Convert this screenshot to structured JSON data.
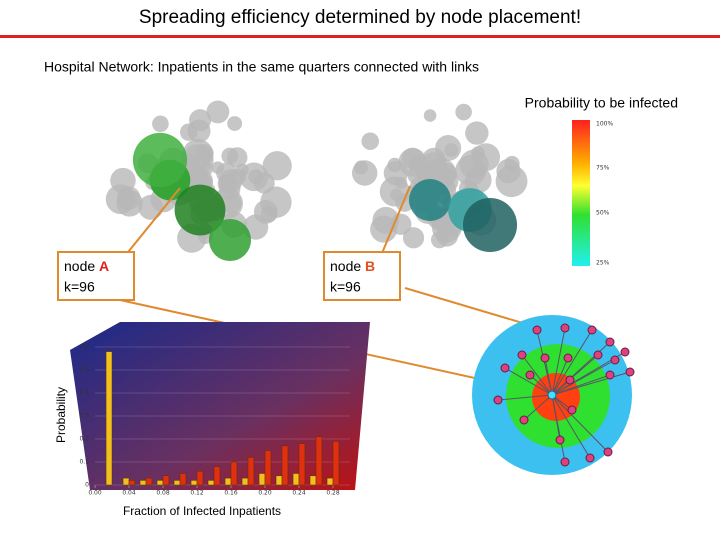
{
  "title": "Spreading efficiency determined by node placement!",
  "subtitle": "Hospital Network: Inpatients in the same quarters connected with links",
  "colorbar": {
    "title": "Probability to be infected",
    "labels": [
      "100%",
      "75%",
      "50%",
      "25%"
    ]
  },
  "node_a": {
    "label": "node",
    "letter": "A",
    "degree": "k=96"
  },
  "node_b": {
    "label": "node",
    "letter": "B",
    "degree": "k=96"
  },
  "chart": {
    "type": "bar",
    "y_label": "Probability",
    "x_label": "Fraction of Infected Inpatients",
    "x": [
      0.02,
      0.04,
      0.06,
      0.08,
      0.1,
      0.12,
      0.14,
      0.16,
      0.18,
      0.2,
      0.22,
      0.24,
      0.26,
      0.28
    ],
    "xlim": [
      0,
      0.3
    ],
    "xticks": [
      {
        "value": 0,
        "label": "0.00"
      },
      0.04,
      0.08,
      0.12,
      0.16,
      {
        "value": 0.2,
        "label": "0.20"
      },
      0.24,
      0.28
    ],
    "ylim": [
      0,
      0.6
    ],
    "yticks": [
      0,
      0.1,
      0.2,
      0.3,
      0.4,
      0.5,
      0.6
    ],
    "series": [
      {
        "color": "#f0c020",
        "values": [
          0.58,
          0.03,
          0.02,
          0.02,
          0.02,
          0.02,
          0.02,
          0.03,
          0.03,
          0.05,
          0.04,
          0.05,
          0.04,
          0.03
        ]
      },
      {
        "color": "#e03010",
        "values": [
          0,
          0.02,
          0.03,
          0.04,
          0.05,
          0.06,
          0.08,
          0.1,
          0.12,
          0.15,
          0.17,
          0.18,
          0.21,
          0.19
        ]
      }
    ]
  }
}
